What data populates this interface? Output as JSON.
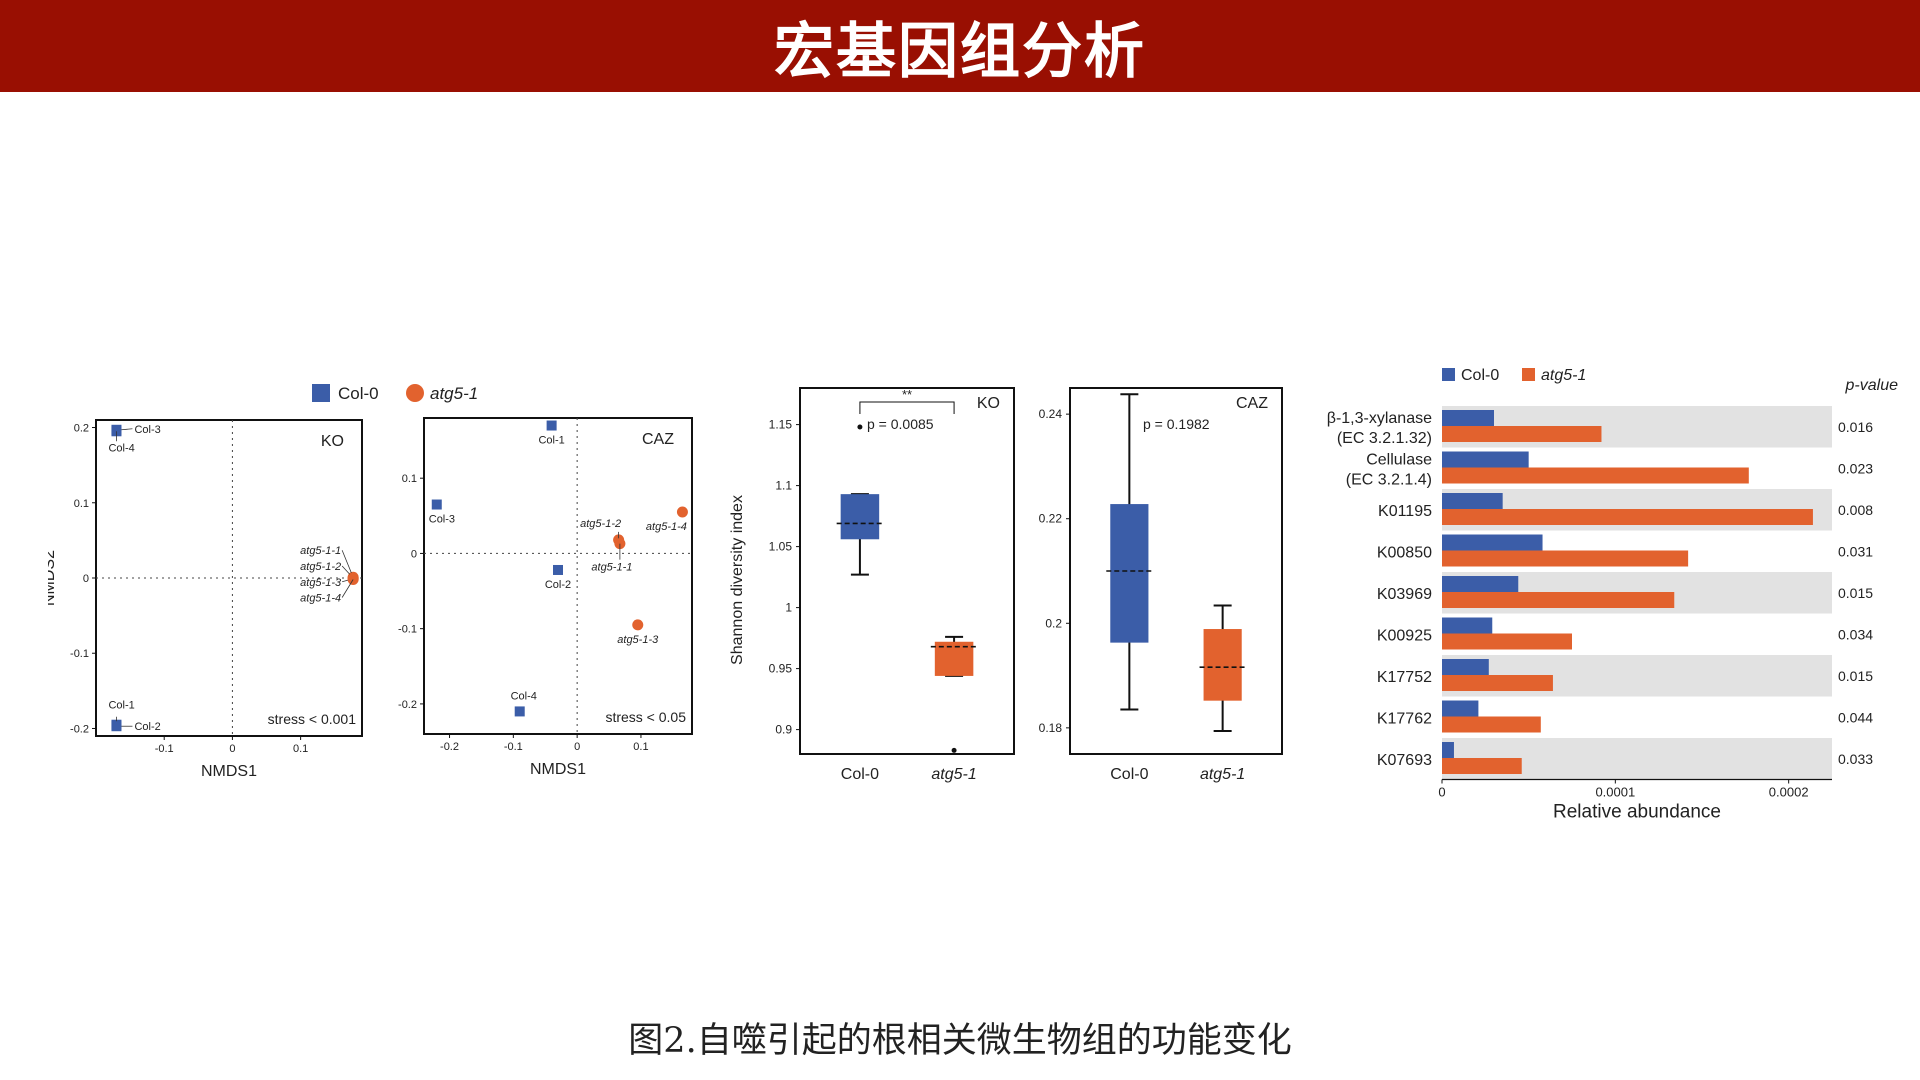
{
  "header": {
    "title": "宏基因组分析"
  },
  "caption": "图2.自噬引起的根相关微生物组的功能变化",
  "colors": {
    "col0": "#3b5da8",
    "atg5": "#e2622e",
    "title_bg": "#990f02",
    "band": "#e2e2e2"
  },
  "legend": {
    "col0": "Col-0",
    "atg5": "atg5-1"
  },
  "chart_data": [
    {
      "id": "nmds-ko",
      "type": "scatter",
      "panel_label": "KO",
      "xlabel": "NMDS1",
      "ylabel": "NMDS2",
      "stress": "stress < 0.001",
      "xlim": [
        -0.2,
        0.19
      ],
      "ylim": [
        -0.21,
        0.21
      ],
      "xticks": [
        -0.1,
        0,
        0.1
      ],
      "xtick_labels": [
        "-0.1",
        "0",
        "0.1"
      ],
      "yticks": [
        -0.2,
        -0.1,
        0,
        0.1,
        0.2
      ],
      "ytick_labels": [
        "-0.2",
        "-0.1",
        "0",
        "0.1",
        "0.2"
      ],
      "series": [
        {
          "name": "Col-0",
          "marker": "square",
          "points": [
            {
              "label": "Col-3",
              "x": -0.17,
              "y": 0.197
            },
            {
              "label": "Col-4",
              "x": -0.17,
              "y": 0.195
            },
            {
              "label": "Col-1",
              "x": -0.17,
              "y": -0.195
            },
            {
              "label": "Col-2",
              "x": -0.17,
              "y": -0.197
            }
          ]
        },
        {
          "name": "atg5-1",
          "marker": "circle",
          "points": [
            {
              "label": "atg5-1-1",
              "x": 0.177,
              "y": 0.001
            },
            {
              "label": "atg5-1-2",
              "x": 0.177,
              "y": 0.0
            },
            {
              "label": "atg5-1-3",
              "x": 0.177,
              "y": -0.001
            },
            {
              "label": "atg5-1-4",
              "x": 0.177,
              "y": -0.002
            }
          ]
        }
      ]
    },
    {
      "id": "nmds-caz",
      "type": "scatter",
      "panel_label": "CAZ",
      "xlabel": "NMDS1",
      "stress": "stress < 0.05",
      "xlim": [
        -0.24,
        0.18
      ],
      "ylim": [
        -0.24,
        0.18
      ],
      "xticks": [
        -0.2,
        -0.1,
        0,
        0.1
      ],
      "xtick_labels": [
        "-0.2",
        "-0.1",
        "0",
        "0.1"
      ],
      "yticks": [
        -0.2,
        -0.1,
        0,
        0.1
      ],
      "ytick_labels": [
        "-0.2",
        "-0.1",
        "0",
        "0.1"
      ],
      "series": [
        {
          "name": "Col-0",
          "marker": "square",
          "points": [
            {
              "label": "Col-1",
              "x": -0.04,
              "y": 0.17
            },
            {
              "label": "Col-3",
              "x": -0.22,
              "y": 0.065
            },
            {
              "label": "Col-2",
              "x": -0.03,
              "y": -0.022
            },
            {
              "label": "Col-4",
              "x": -0.09,
              "y": -0.21
            }
          ]
        },
        {
          "name": "atg5-1",
          "marker": "circle",
          "points": [
            {
              "label": "atg5-1-2",
              "x": 0.065,
              "y": 0.018
            },
            {
              "label": "atg5-1-4",
              "x": 0.165,
              "y": 0.055
            },
            {
              "label": "atg5-1-1",
              "x": 0.067,
              "y": 0.013
            },
            {
              "label": "atg5-1-3",
              "x": 0.095,
              "y": -0.095
            }
          ]
        }
      ]
    },
    {
      "id": "shannon-ko",
      "type": "box",
      "panel_label": "KO",
      "ylabel": "Shannon diversity index",
      "pvalue": "p = 0.0085",
      "significance": "**",
      "ylim": [
        0.88,
        1.18
      ],
      "yticks": [
        0.9,
        0.95,
        1,
        1.05,
        1.1,
        1.15
      ],
      "ytick_labels": [
        "0.9",
        "0.95",
        "1",
        "1.05",
        "1.1",
        "1.15"
      ],
      "categories": [
        "Col-0",
        "atg5-1"
      ],
      "boxes": [
        {
          "name": "Col-0",
          "min": 1.027,
          "q1": 1.056,
          "median": 1.069,
          "q3": 1.093,
          "max": 1.093,
          "outliers": [
            1.148
          ]
        },
        {
          "name": "atg5-1",
          "min": 0.944,
          "q1": 0.944,
          "median": 0.968,
          "q3": 0.972,
          "max": 0.976,
          "outliers": [
            0.883
          ]
        }
      ]
    },
    {
      "id": "shannon-caz",
      "type": "box",
      "panel_label": "CAZ",
      "pvalue": "p = 0.1982",
      "ylim": [
        0.175,
        0.245
      ],
      "yticks": [
        0.18,
        0.2,
        0.22,
        0.24
      ],
      "ytick_labels": [
        "0.18",
        "0.2",
        "0.22",
        "0.24"
      ],
      "categories": [
        "Col-0",
        "atg5-1"
      ],
      "boxes": [
        {
          "name": "Col-0",
          "min": 0.1835,
          "q1": 0.1963,
          "median": 0.21,
          "q3": 0.2228,
          "max": 0.2438,
          "outliers": []
        },
        {
          "name": "atg5-1",
          "min": 0.1794,
          "q1": 0.1852,
          "median": 0.1916,
          "q3": 0.1989,
          "max": 0.2034,
          "outliers": []
        }
      ]
    },
    {
      "id": "relative-abundance",
      "type": "bar",
      "orientation": "horizontal",
      "xlabel": "Relative abundance",
      "pvalue_header": "p-value",
      "xlim": [
        0,
        0.000225
      ],
      "xticks": [
        0,
        0.0001,
        0.0002
      ],
      "xtick_labels": [
        "0",
        "0.0001",
        "0.0002"
      ],
      "categories": [
        {
          "line1": "β-1,3-xylanase",
          "line2": "(EC 3.2.1.32)"
        },
        {
          "line1": "Cellulase",
          "line2": "(EC 3.2.1.4)"
        },
        {
          "line1": "K01195",
          "line2": ""
        },
        {
          "line1": "K00850",
          "line2": ""
        },
        {
          "line1": "K03969",
          "line2": ""
        },
        {
          "line1": "K00925",
          "line2": ""
        },
        {
          "line1": "K17752",
          "line2": ""
        },
        {
          "line1": "K17762",
          "line2": ""
        },
        {
          "line1": "K07693",
          "line2": ""
        }
      ],
      "series": [
        {
          "name": "Col-0",
          "values": [
            3e-05,
            5e-05,
            3.5e-05,
            5.8e-05,
            4.4e-05,
            2.9e-05,
            2.7e-05,
            2.1e-05,
            6.9e-06
          ]
        },
        {
          "name": "atg5-1",
          "values": [
            9.2e-05,
            0.000177,
            0.000214,
            0.000142,
            0.000134,
            7.5e-05,
            6.4e-05,
            5.7e-05,
            4.6e-05
          ]
        }
      ],
      "pvalues": [
        "0.016",
        "0.023",
        "0.008",
        "0.031",
        "0.015",
        "0.034",
        "0.015",
        "0.044",
        "0.033"
      ]
    }
  ]
}
